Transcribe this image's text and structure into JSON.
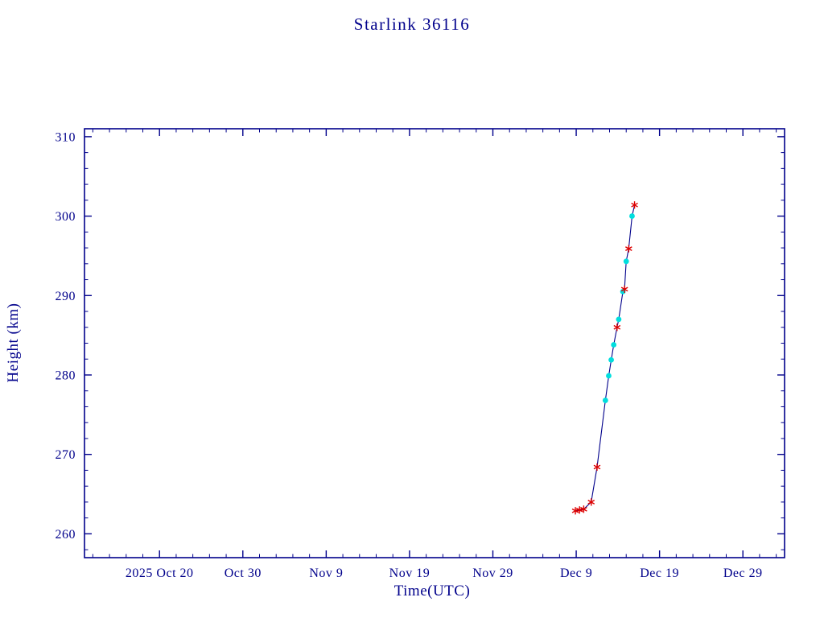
{
  "chart_data": {
    "type": "line",
    "title": "Starlink 36116",
    "xlabel": "Time(UTC)",
    "ylabel": "Height (km)",
    "grid": false,
    "legend": null,
    "colors": {
      "axis": "#00008B",
      "line": "#00008B",
      "red_marker": "#DD0000",
      "cyan_marker": "#00DEDE"
    },
    "x_axis": {
      "unit": "days (0 = left edge of plotted range, 10 days per major tick)",
      "lim": [
        0,
        84
      ],
      "minor_step": 2,
      "major_ticks": [
        {
          "day": 9,
          "label": "2025 Oct 20"
        },
        {
          "day": 19,
          "label": "Oct 30"
        },
        {
          "day": 29,
          "label": "Nov 9"
        },
        {
          "day": 39,
          "label": "Nov 19"
        },
        {
          "day": 49,
          "label": "Nov 29"
        },
        {
          "day": 59,
          "label": "Dec 9"
        },
        {
          "day": 69,
          "label": "Dec 19"
        },
        {
          "day": 79,
          "label": "Dec 29"
        }
      ]
    },
    "y_axis": {
      "unit": "km",
      "lim": [
        257,
        311
      ],
      "minor_step": 2,
      "major_ticks": [
        260,
        270,
        280,
        290,
        300,
        310
      ]
    },
    "series": [
      {
        "name": "height",
        "points": [
          {
            "day": 58.9,
            "km": 262.9,
            "marker": "red-asterisk"
          },
          {
            "day": 59.4,
            "km": 263.0,
            "marker": "red-asterisk"
          },
          {
            "day": 59.9,
            "km": 263.1,
            "marker": "red-asterisk"
          },
          {
            "day": 60.8,
            "km": 264.0,
            "marker": "red-asterisk"
          },
          {
            "day": 61.5,
            "km": 268.4,
            "marker": "red-asterisk"
          },
          {
            "day": 62.5,
            "km": 276.8,
            "marker": "cyan-dot"
          },
          {
            "day": 62.9,
            "km": 279.9,
            "marker": "cyan-dot"
          },
          {
            "day": 63.2,
            "km": 281.9,
            "marker": "cyan-dot"
          },
          {
            "day": 63.5,
            "km": 283.8,
            "marker": "cyan-dot"
          },
          {
            "day": 63.9,
            "km": 286.0,
            "marker": "red-asterisk"
          },
          {
            "day": 64.1,
            "km": 287.0,
            "marker": "cyan-dot"
          },
          {
            "day": 64.6,
            "km": 290.5,
            "marker": "cyan-dot"
          },
          {
            "day": 64.8,
            "km": 290.8,
            "marker": "red-asterisk"
          },
          {
            "day": 65.0,
            "km": 294.3,
            "marker": "cyan-dot"
          },
          {
            "day": 65.3,
            "km": 295.9,
            "marker": "red-asterisk"
          },
          {
            "day": 65.7,
            "km": 300.0,
            "marker": "cyan-dot"
          },
          {
            "day": 66.0,
            "km": 301.4,
            "marker": "red-asterisk"
          }
        ]
      }
    ]
  }
}
